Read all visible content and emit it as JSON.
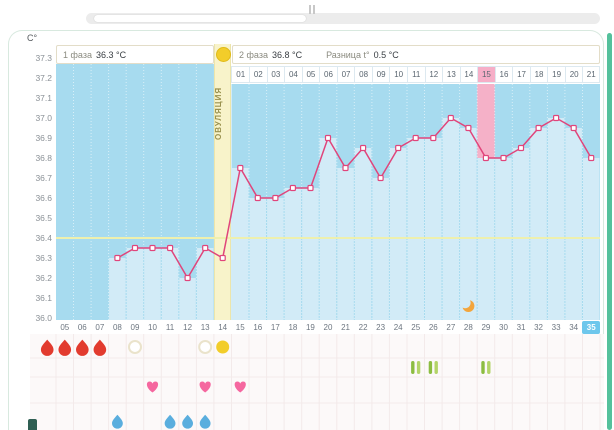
{
  "axis": {
    "unit_label": "C°"
  },
  "header": {
    "phase1_label": "1 фаза",
    "phase1_value": "36.3 °C",
    "phase2_label": "2 фаза",
    "phase2_value": "36.8 °C",
    "diff_label": "Разница t°",
    "diff_value": "0.5 °C",
    "ovulation_label": "ОВУЛЯЦИЯ"
  },
  "chart_data": {
    "type": "line",
    "ylabel": "C°",
    "ylim": [
      36.0,
      37.3
    ],
    "ytick_step": 0.1,
    "ytick_labels": [
      "37.3",
      "37.2",
      "37.1",
      "37.0",
      "36.9",
      "36.8",
      "36.7",
      "36.6",
      "36.5",
      "36.4",
      "36.3",
      "36.2",
      "36.1",
      "36.0"
    ],
    "day_labels": [
      "05",
      "06",
      "07",
      "08",
      "09",
      "10",
      "11",
      "12",
      "13",
      "14",
      "15",
      "16",
      "17",
      "18",
      "19",
      "20",
      "21",
      "22",
      "23",
      "24",
      "25",
      "26",
      "27",
      "28",
      "29",
      "30",
      "31",
      "32",
      "33",
      "34",
      "35"
    ],
    "phase2_day_labels": [
      "01",
      "02",
      "03",
      "04",
      "05",
      "06",
      "07",
      "08",
      "09",
      "10",
      "11",
      "12",
      "13",
      "14",
      "15",
      "16",
      "17",
      "18",
      "19",
      "20",
      "21"
    ],
    "phase2_start_day": 15,
    "ovulation_day": 14,
    "coverline": 36.4,
    "highlight_phase2_day": 15,
    "selected_day": 35,
    "grid": true,
    "legend": false,
    "series": [
      {
        "name": "temperature",
        "points": [
          [
            8,
            36.3
          ],
          [
            9,
            36.35
          ],
          [
            10,
            36.35
          ],
          [
            11,
            36.35
          ],
          [
            12,
            36.2
          ],
          [
            13,
            36.35
          ],
          [
            14,
            36.3
          ],
          [
            15,
            36.75
          ],
          [
            16,
            36.6
          ],
          [
            17,
            36.6
          ],
          [
            18,
            36.65
          ],
          [
            19,
            36.65
          ],
          [
            20,
            36.9
          ],
          [
            21,
            36.75
          ],
          [
            22,
            36.85
          ],
          [
            23,
            36.7
          ],
          [
            24,
            36.85
          ],
          [
            25,
            36.9
          ],
          [
            26,
            36.9
          ],
          [
            27,
            37.0
          ],
          [
            28,
            36.95
          ],
          [
            29,
            36.8
          ],
          [
            30,
            36.8
          ],
          [
            31,
            36.85
          ],
          [
            32,
            36.95
          ],
          [
            33,
            37.0
          ],
          [
            34,
            36.95
          ],
          [
            35,
            36.8
          ]
        ]
      }
    ]
  },
  "events": {
    "menstruation_days": [
      4,
      5,
      6,
      7
    ],
    "circle_outline_days": [
      9,
      13
    ],
    "ovulation_circle_day": 14,
    "heart_days": [
      10,
      13,
      15
    ],
    "pill_days": [
      25,
      26,
      29
    ],
    "blue_drop_days": [
      8,
      11,
      12,
      13
    ],
    "moon_day": 28
  },
  "colors": {
    "chart_bg": "#a7dbef",
    "under_curve": "#d2ebf7",
    "ovulation_band": "#f8f3ca",
    "ovulation_circle": "#f2cd2a",
    "phase2_highlight": "#f5b1c8",
    "phase2_highlight_cell": "#f6aec7",
    "curve": "#e0457b",
    "coverline": "#eef0ae",
    "selected_day_bg": "#6ec7ec",
    "menstruation": "#e23b2e",
    "heart": "#f5679f",
    "pill_dark": "#8cbd41",
    "pill_light": "#b3d468",
    "blue_drop": "#5aaede",
    "moon": "#f3a53c",
    "edge_green": "#55c19c"
  }
}
